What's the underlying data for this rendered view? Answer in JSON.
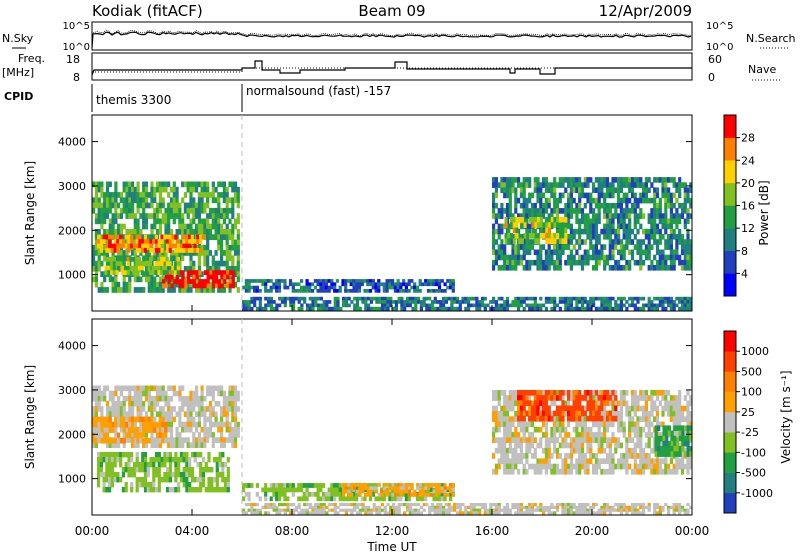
{
  "header": {
    "station": "Kodiak (fitACF)",
    "beam": "Beam 09",
    "date": "12/Apr/2009"
  },
  "nsky_panel": {
    "left_label": "N.Sky",
    "right_label": "N.Search",
    "ticks": [
      "10^5",
      "10^0"
    ]
  },
  "freq_panel": {
    "left_label_1": "Freq.",
    "left_label_2": "[MHz]",
    "left_ticks": [
      "18",
      "8"
    ],
    "right_label": "Nave",
    "right_ticks": [
      "60",
      "0"
    ]
  },
  "cpid": {
    "label": "CPID",
    "segments": [
      {
        "text": "themis 3300",
        "start_hour": 0,
        "end_hour": 6
      },
      {
        "text": "normalsound (fast) -157",
        "start_hour": 6,
        "end_hour": 24
      }
    ]
  },
  "xaxis": {
    "label": "Time UT",
    "ticks": [
      "00:00",
      "04:00",
      "08:00",
      "12:00",
      "16:00",
      "20:00",
      "00:00"
    ],
    "tick_hours": [
      0,
      4,
      8,
      12,
      16,
      20,
      24
    ]
  },
  "chart_data": [
    {
      "type": "heatmap",
      "name": "power",
      "ylabel": "Slant Range [km]",
      "yticks": [
        "1000",
        "2000",
        "3000",
        "4000"
      ],
      "ylim": [
        180,
        4600
      ],
      "xlim_hours": [
        0,
        24
      ],
      "colorbar": {
        "label": "Power [dB]",
        "ticks": [
          "28",
          "24",
          "20",
          "16",
          "12",
          "8",
          "4"
        ],
        "colors": [
          "#0000ff",
          "#2040c0",
          "#208080",
          "#20a040",
          "#80c020",
          "#ffd000",
          "#ff8000",
          "#ff0000"
        ]
      },
      "regions": [
        {
          "t0": 0.0,
          "t1": 5.9,
          "r0": 600,
          "r1": 3100,
          "level": 0.45
        },
        {
          "t0": 0.2,
          "t1": 4.5,
          "r0": 1500,
          "r1": 1900,
          "level": 0.8
        },
        {
          "t0": 2.8,
          "t1": 5.7,
          "r0": 700,
          "r1": 1100,
          "level": 0.95
        },
        {
          "t0": 0.5,
          "t1": 3.5,
          "r0": 1000,
          "r1": 1400,
          "level": 0.6
        },
        {
          "t0": 6.0,
          "t1": 14.5,
          "r0": 600,
          "r1": 900,
          "level": 0.25
        },
        {
          "t0": 6.0,
          "t1": 24.0,
          "r0": 200,
          "r1": 500,
          "level": 0.3
        },
        {
          "t0": 16.0,
          "t1": 24.0,
          "r0": 1100,
          "r1": 3200,
          "level": 0.35
        },
        {
          "t0": 16.5,
          "t1": 19.0,
          "r0": 1700,
          "r1": 2300,
          "level": 0.6
        }
      ]
    },
    {
      "type": "heatmap",
      "name": "velocity",
      "ylabel": "Slant Range [km]",
      "yticks": [
        "1000",
        "2000",
        "3000",
        "4000"
      ],
      "ylim": [
        180,
        4600
      ],
      "xlim_hours": [
        0,
        24
      ],
      "colorbar": {
        "label": "Velocity [m s⁻¹]",
        "ticks": [
          "1000",
          "500",
          "100",
          "25",
          "-25",
          "-100",
          "-500",
          "-1000"
        ],
        "colors": [
          "#2040c0",
          "#208080",
          "#20a040",
          "#80c020",
          "#c0c0c0",
          "#ffa000",
          "#ff8000",
          "#ff4000",
          "#ff0000"
        ]
      },
      "regions": [
        {
          "t0": 0.0,
          "t1": 5.9,
          "r0": 1700,
          "r1": 3100,
          "level": 4
        },
        {
          "t0": 0.2,
          "t1": 5.5,
          "r0": 700,
          "r1": 1600,
          "level": 3
        },
        {
          "t0": 0.0,
          "t1": 3.0,
          "r0": 1800,
          "r1": 2400,
          "level": 5
        },
        {
          "t0": 6.0,
          "t1": 14.5,
          "r0": 500,
          "r1": 900,
          "level": 3
        },
        {
          "t0": 10.0,
          "t1": 14.5,
          "r0": 600,
          "r1": 900,
          "level": 5
        },
        {
          "t0": 6.0,
          "t1": 24.0,
          "r0": 200,
          "r1": 450,
          "level": 4
        },
        {
          "t0": 16.0,
          "t1": 24.0,
          "r0": 1100,
          "r1": 3000,
          "level": 4
        },
        {
          "t0": 17.0,
          "t1": 21.0,
          "r0": 2300,
          "r1": 3000,
          "level": 7
        },
        {
          "t0": 22.5,
          "t1": 24.0,
          "r0": 1500,
          "r1": 2200,
          "level": 2
        }
      ]
    }
  ]
}
